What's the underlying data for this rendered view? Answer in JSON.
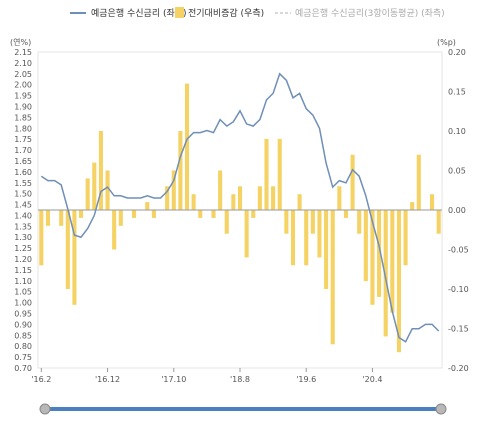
{
  "chart_data": {
    "type": "bar+line",
    "title": "",
    "left_axis": {
      "unit": "(연%)",
      "ylim": [
        0.7,
        2.15
      ],
      "ticks": [
        "0.70",
        "0.75",
        "0.80",
        "0.85",
        "0.90",
        "0.95",
        "1.00",
        "1.05",
        "1.10",
        "1.15",
        "1.20",
        "1.25",
        "1.30",
        "1.35",
        "1.40",
        "1.45",
        "1.50",
        "1.55",
        "1.60",
        "1.65",
        "1.70",
        "1.75",
        "1.80",
        "1.85",
        "1.90",
        "1.95",
        "2.00",
        "2.05",
        "2.10",
        "2.15"
      ]
    },
    "right_axis": {
      "unit": "(%p)",
      "ylim": [
        -0.2,
        0.2
      ],
      "ticks": [
        "-0.20",
        "-0.15",
        "-0.10",
        "-0.05",
        "0.00",
        "0.05",
        "0.10",
        "0.15",
        "0.20"
      ]
    },
    "x_labels": [
      "'16.2",
      "'16.12",
      "'17.10",
      "'18.8",
      "'19.6",
      "'20.4"
    ],
    "x_label_index": [
      0,
      10,
      20,
      30,
      40,
      50
    ],
    "legend": [
      {
        "label": "예금은행 수신금리 (좌측)",
        "type": "line",
        "color": "#6f8fb8"
      },
      {
        "label": "전기대비증감 (우측)",
        "type": "bar",
        "color": "#f5d264"
      },
      {
        "label": "예금은행 수신금리(3항이동평균) (좌측)",
        "type": "dashed",
        "color": "#cccccc"
      }
    ],
    "series": [
      {
        "name": "예금은행 수신금리 (좌측)",
        "axis": "left",
        "values": [
          1.58,
          1.56,
          1.56,
          1.54,
          1.43,
          1.31,
          1.3,
          1.34,
          1.4,
          1.51,
          1.53,
          1.49,
          1.49,
          1.48,
          1.48,
          1.48,
          1.49,
          1.48,
          1.48,
          1.51,
          1.56,
          1.67,
          1.75,
          1.78,
          1.78,
          1.79,
          1.78,
          1.84,
          1.81,
          1.83,
          1.88,
          1.82,
          1.81,
          1.84,
          1.93,
          1.96,
          2.05,
          2.02,
          1.94,
          1.96,
          1.89,
          1.86,
          1.8,
          1.64,
          1.53,
          1.56,
          1.55,
          1.61,
          1.58,
          1.49,
          1.37,
          1.26,
          1.11,
          0.96,
          0.84,
          0.82,
          0.88,
          0.88,
          0.9,
          0.9,
          0.87
        ]
      },
      {
        "name": "전기대비증감 (우측)",
        "axis": "right",
        "values": [
          -0.07,
          -0.02,
          0.0,
          -0.02,
          -0.1,
          -0.12,
          -0.01,
          0.04,
          0.06,
          0.1,
          0.05,
          -0.05,
          -0.02,
          0.0,
          -0.01,
          0.0,
          0.01,
          -0.01,
          0.0,
          0.03,
          0.05,
          0.1,
          0.16,
          0.02,
          -0.01,
          0.0,
          -0.01,
          0.05,
          -0.03,
          0.02,
          0.03,
          -0.06,
          -0.01,
          0.03,
          0.09,
          0.03,
          0.09,
          -0.03,
          -0.07,
          0.02,
          -0.07,
          -0.03,
          -0.06,
          -0.1,
          -0.17,
          0.03,
          -0.01,
          0.07,
          -0.03,
          -0.09,
          -0.12,
          -0.11,
          -0.16,
          -0.13,
          -0.18,
          -0.07,
          0.01,
          0.07,
          0.0,
          0.02,
          -0.03
        ]
      }
    ]
  }
}
